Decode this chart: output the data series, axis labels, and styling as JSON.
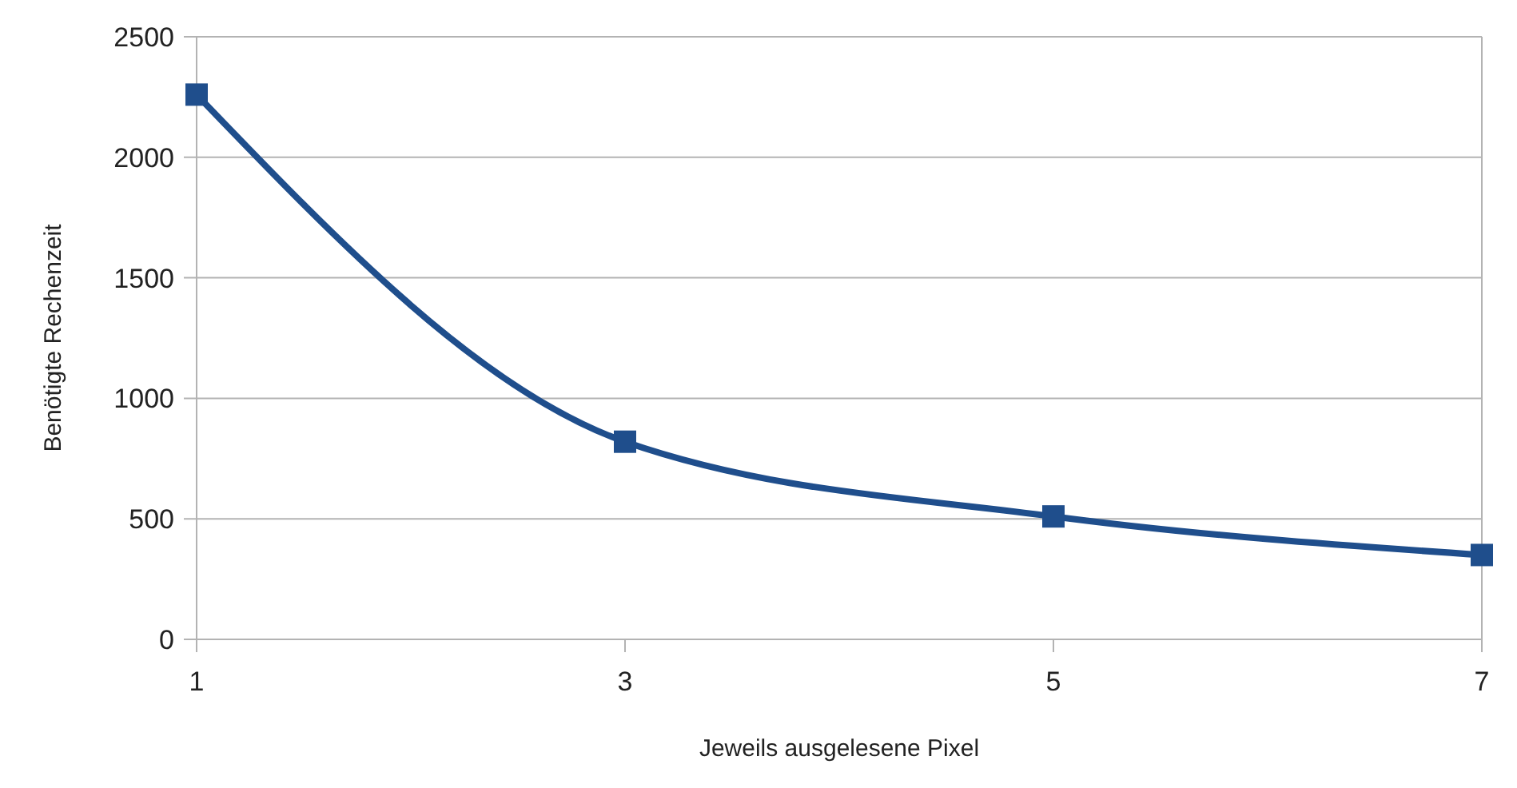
{
  "chart_data": {
    "type": "line",
    "xlabel": "Jeweils ausgelesene Pixel",
    "ylabel": "Benötigte Rechenzeit",
    "x": [
      1,
      3,
      5,
      7
    ],
    "series": [
      {
        "color": "#1f4e8c",
        "values": [
          2260,
          820,
          510,
          350
        ]
      }
    ],
    "xlim": [
      1,
      7
    ],
    "xticks": [
      1,
      3,
      5,
      7
    ],
    "ylim": [
      0,
      2500
    ],
    "yticks": [
      0,
      500,
      1000,
      1500,
      2000,
      2500
    ],
    "grid": "y",
    "marker": "square",
    "line_style": "solid"
  }
}
